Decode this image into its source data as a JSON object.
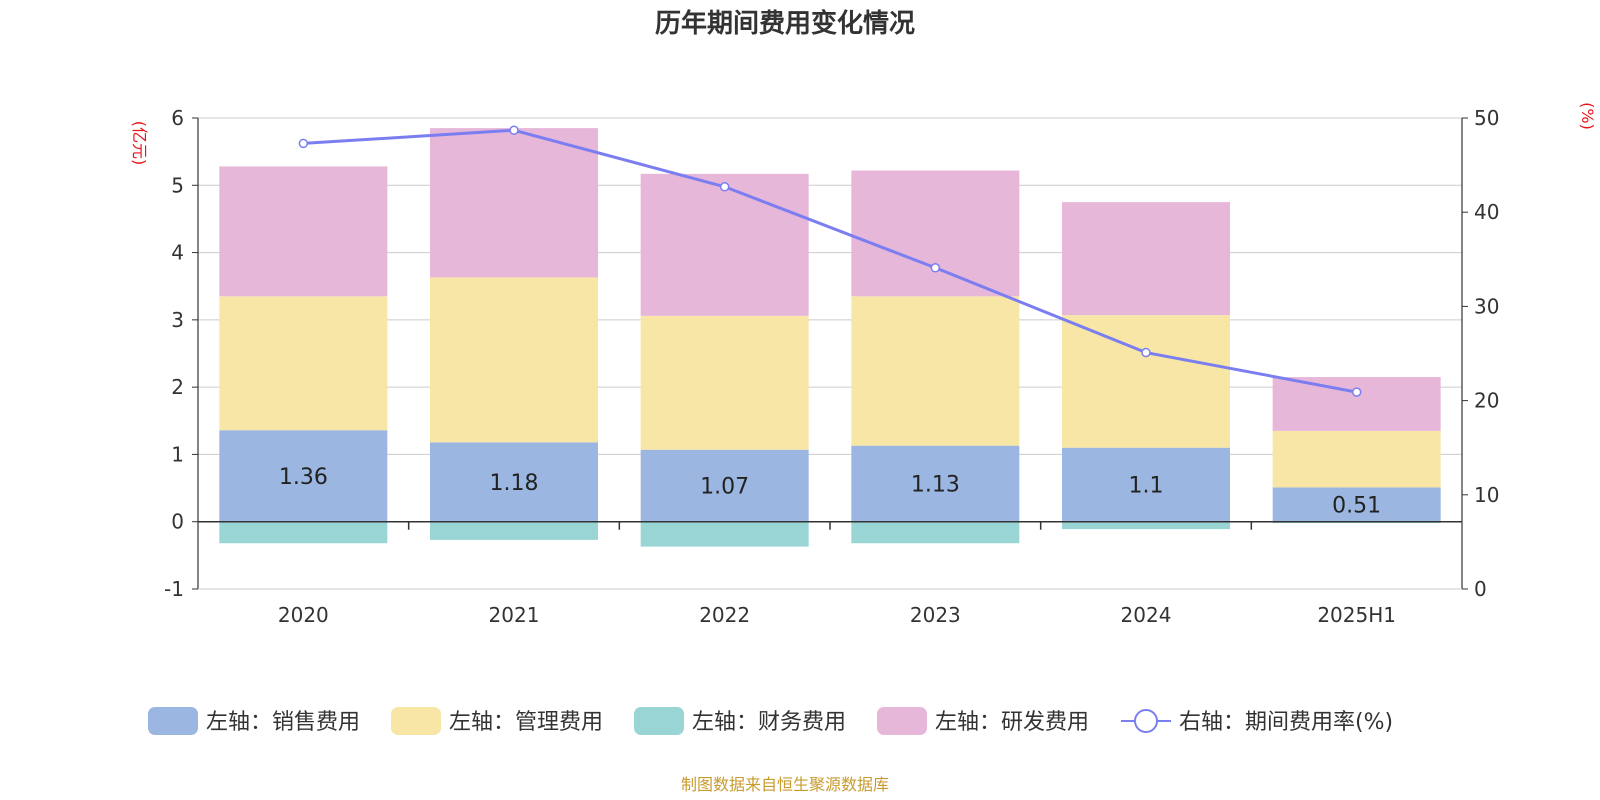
{
  "chart_data": {
    "type": "bar",
    "title": "历年期间费用变化情况",
    "categories": [
      "2020",
      "2021",
      "2022",
      "2023",
      "2024",
      "2025H1"
    ],
    "left_axis": {
      "unit": "(亿元)",
      "ylim": [
        -1,
        6
      ],
      "ticks": [
        "6",
        "5",
        "4",
        "3",
        "2",
        "1",
        "0",
        "-1"
      ]
    },
    "right_axis": {
      "unit": "(%)",
      "ylim": [
        0,
        50
      ],
      "ticks": [
        "50",
        "40",
        "30",
        "20",
        "10",
        "0"
      ]
    },
    "series": [
      {
        "name": "左轴：销售费用",
        "color": "#9bb6e0",
        "values": [
          1.36,
          1.18,
          1.07,
          1.13,
          1.1,
          0.51
        ]
      },
      {
        "name": "左轴：管理费用",
        "color": "#f8e6a6",
        "values": [
          1.99,
          2.45,
          1.99,
          2.22,
          1.97,
          0.84
        ]
      },
      {
        "name": "左轴：财务费用",
        "color": "#98d5d4",
        "values": [
          -0.32,
          -0.27,
          -0.37,
          -0.32,
          -0.11,
          -0.02
        ]
      },
      {
        "name": "左轴：研发费用",
        "color": "#e7b7d9",
        "values": [
          1.93,
          2.22,
          2.11,
          1.87,
          1.68,
          0.8
        ]
      }
    ],
    "line_series": {
      "name": "右轴：期间费用率(%)",
      "color": "#7b7ef0",
      "values": [
        47.3,
        48.7,
        42.7,
        34.1,
        25.1,
        20.9
      ]
    },
    "data_labels": [
      "1.36",
      "1.18",
      "1.07",
      "1.13",
      "1.1",
      "0.51"
    ],
    "grid": true,
    "legend_position": "bottom"
  },
  "footer": {
    "source": "制图数据来自恒生聚源数据库"
  }
}
